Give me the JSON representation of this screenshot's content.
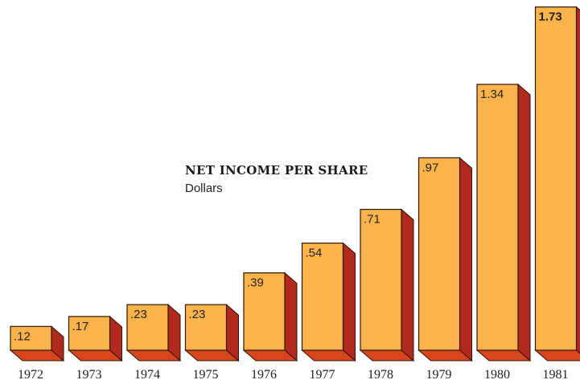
{
  "chart_data": {
    "type": "bar",
    "title": "NET INCOME PER SHARE",
    "subtitle": "Dollars",
    "categories": [
      "1972",
      "1973",
      "1974",
      "1975",
      "1976",
      "1977",
      "1978",
      "1979",
      "1980",
      "1981"
    ],
    "values": [
      0.12,
      0.17,
      0.23,
      0.23,
      0.39,
      0.54,
      0.71,
      0.97,
      1.34,
      1.73
    ],
    "value_labels": [
      ".12",
      ".17",
      ".23",
      ".23",
      ".39",
      ".54",
      ".71",
      ".97",
      "1.34",
      "1.73"
    ],
    "highlight_last_label_bold": true,
    "grid": false,
    "colors": {
      "front": "#FBB44B",
      "side": "#B0291C",
      "top": "#D9451F",
      "outline": "#2a1608"
    }
  }
}
